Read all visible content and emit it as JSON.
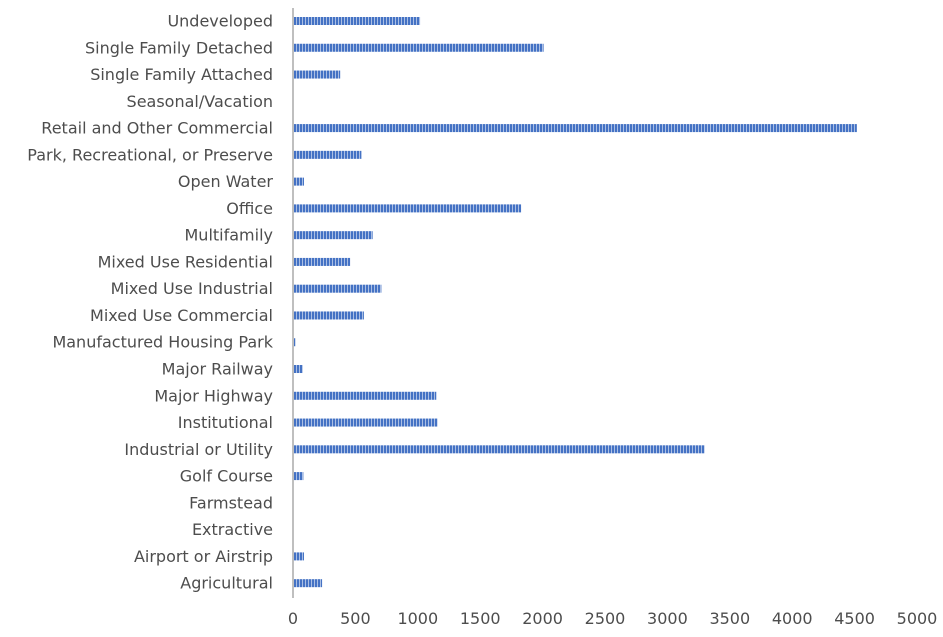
{
  "chart_data": {
    "type": "bar",
    "orientation": "horizontal",
    "title": "",
    "xlabel": "",
    "ylabel": "",
    "categories": [
      "Undeveloped",
      "Single Family Detached",
      "Single Family Attached",
      "Seasonal/Vacation",
      "Retail and Other Commercial",
      "Park, Recreational, or Preserve",
      "Open Water",
      "Office",
      "Multifamily",
      "Mixed Use Residential",
      "Mixed Use Industrial",
      "Mixed Use Commercial",
      "Manufactured Housing Park",
      "Major Railway",
      "Major Highway",
      "Institutional",
      "Industrial or Utility",
      "Golf Course",
      "Farmstead",
      "Extractive",
      "Airport or Airstrip",
      "Agricultural"
    ],
    "values": [
      1010,
      2000,
      370,
      0,
      4510,
      540,
      80,
      1820,
      630,
      450,
      700,
      560,
      10,
      70,
      1140,
      1150,
      3290,
      75,
      0,
      0,
      80,
      225
    ],
    "xlim": [
      0,
      5000
    ],
    "xticks": [
      "0",
      "500",
      "1000",
      "1500",
      "2000",
      "2500",
      "3000",
      "3500",
      "4000",
      "4500",
      "5000"
    ],
    "grid": false,
    "legend": "none",
    "bar_color": "#4472c4",
    "bar_pattern_color": "#ffffff",
    "axis_color": "#bfbfbf",
    "text_color": "#4d4d4d"
  }
}
